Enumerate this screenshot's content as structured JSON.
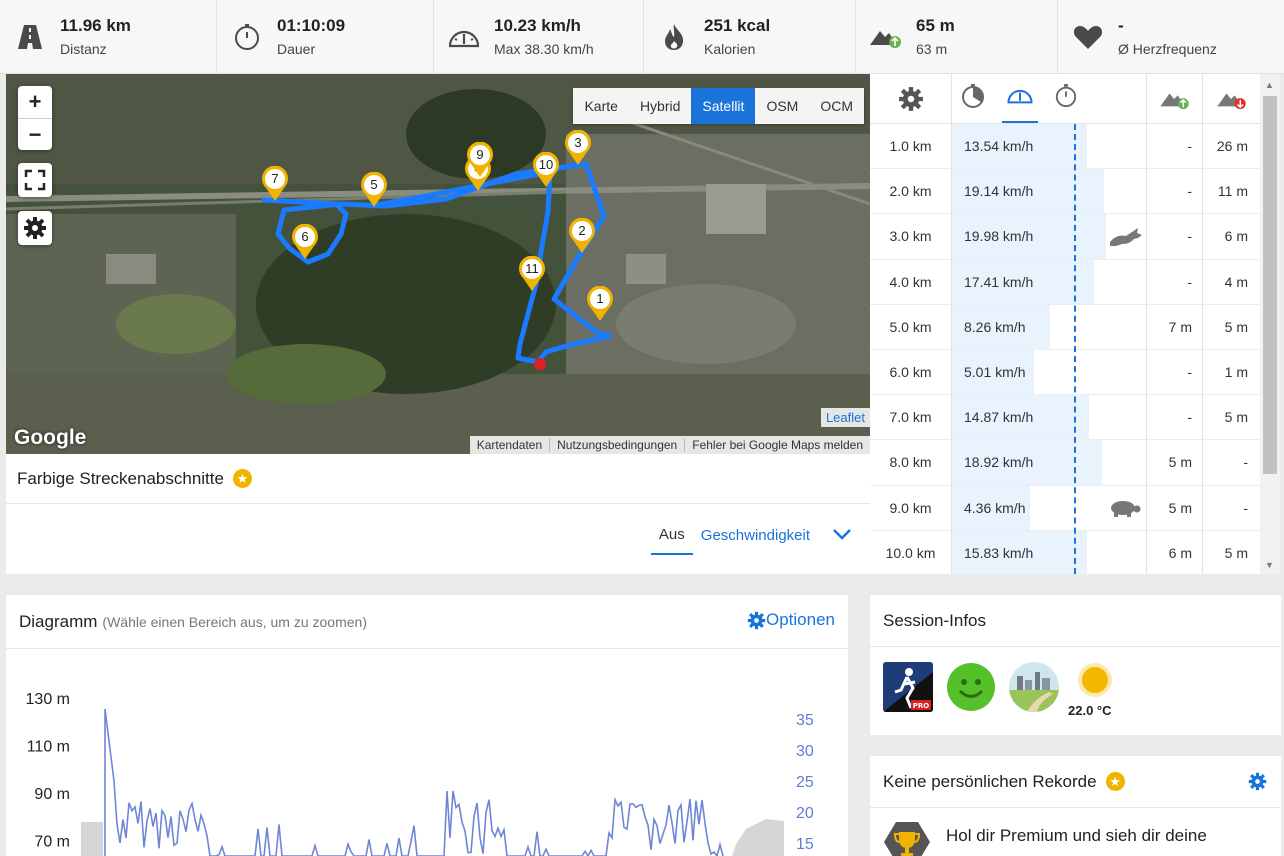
{
  "stats": [
    {
      "icon": "road-icon",
      "value": "11.96 km",
      "label": "Distanz"
    },
    {
      "icon": "stopwatch-icon",
      "value": "01:10:09",
      "label": "Dauer"
    },
    {
      "icon": "speedometer-icon",
      "value": "10.23 km/h",
      "label": "Max 38.30 km/h"
    },
    {
      "icon": "flame-icon",
      "value": "251 kcal",
      "label": "Kalorien"
    },
    {
      "icon": "elevation-icon",
      "value": "65 m",
      "label": "63 m"
    },
    {
      "icon": "heart-icon",
      "value": "-",
      "label": "Ø Herzfrequenz"
    }
  ],
  "map": {
    "zoom_in": "+",
    "zoom_out": "−",
    "types": [
      "Karte",
      "Hybrid",
      "Satellit",
      "OSM",
      "OCM"
    ],
    "active_type": "Satellit",
    "leaflet": "Leaflet",
    "google": "Google",
    "attribution": [
      "Kartendaten",
      "Nutzungsbedingungen",
      "Fehler bei Google Maps melden"
    ],
    "markers": [
      "1",
      "2",
      "3",
      "4",
      "5",
      "6",
      "7",
      "9",
      "10",
      "11"
    ]
  },
  "sections": {
    "title": "Farbige Streckenabschnitte",
    "tab_off": "Aus",
    "tab_speed": "Geschwindigkeit"
  },
  "splits": {
    "rows": [
      {
        "km": "1.0 km",
        "speed": "13.54 km/h",
        "fill": 0.69,
        "up": "-",
        "down": "26 m",
        "icon": ""
      },
      {
        "km": "2.0 km",
        "speed": "19.14 km/h",
        "fill": 0.78,
        "up": "-",
        "down": "11 m",
        "icon": ""
      },
      {
        "km": "3.0 km",
        "speed": "19.98 km/h",
        "fill": 0.79,
        "up": "-",
        "down": "6 m",
        "icon": "rabbit-icon"
      },
      {
        "km": "4.0 km",
        "speed": "17.41 km/h",
        "fill": 0.73,
        "up": "-",
        "down": "4 m",
        "icon": ""
      },
      {
        "km": "5.0 km",
        "speed": "8.26 km/h",
        "fill": 0.5,
        "up": "7 m",
        "down": "5 m",
        "icon": ""
      },
      {
        "km": "6.0 km",
        "speed": "5.01 km/h",
        "fill": 0.42,
        "up": "-",
        "down": "1 m",
        "icon": ""
      },
      {
        "km": "7.0 km",
        "speed": "14.87 km/h",
        "fill": 0.7,
        "up": "-",
        "down": "5 m",
        "icon": ""
      },
      {
        "km": "8.0 km",
        "speed": "18.92 km/h",
        "fill": 0.77,
        "up": "5 m",
        "down": "-",
        "icon": ""
      },
      {
        "km": "9.0 km",
        "speed": "4.36 km/h",
        "fill": 0.4,
        "up": "5 m",
        "down": "-",
        "icon": "turtle-icon"
      },
      {
        "km": "10.0 km",
        "speed": "15.83 km/h",
        "fill": 0.69,
        "up": "6 m",
        "down": "5 m",
        "icon": ""
      }
    ]
  },
  "diagram": {
    "title": "Diagramm",
    "hint": "(Wähle einen Bereich aus, um zu zoomen)",
    "options": "Optionen",
    "left_ticks": [
      "130 m",
      "110 m",
      "90 m",
      "70 m"
    ],
    "right_ticks": [
      "35",
      "30",
      "25",
      "20",
      "15"
    ]
  },
  "session": {
    "title": "Session-Infos",
    "temperature": "22.0 °C"
  },
  "records": {
    "title": "Keine persönlichen Rekorde",
    "message": "Hol dir Premium und sieh dir deine"
  },
  "colors": {
    "accent": "#1a73d9",
    "route": "#1a7bff",
    "marker": "#f0b400",
    "chart_line": "#6f86d6"
  }
}
